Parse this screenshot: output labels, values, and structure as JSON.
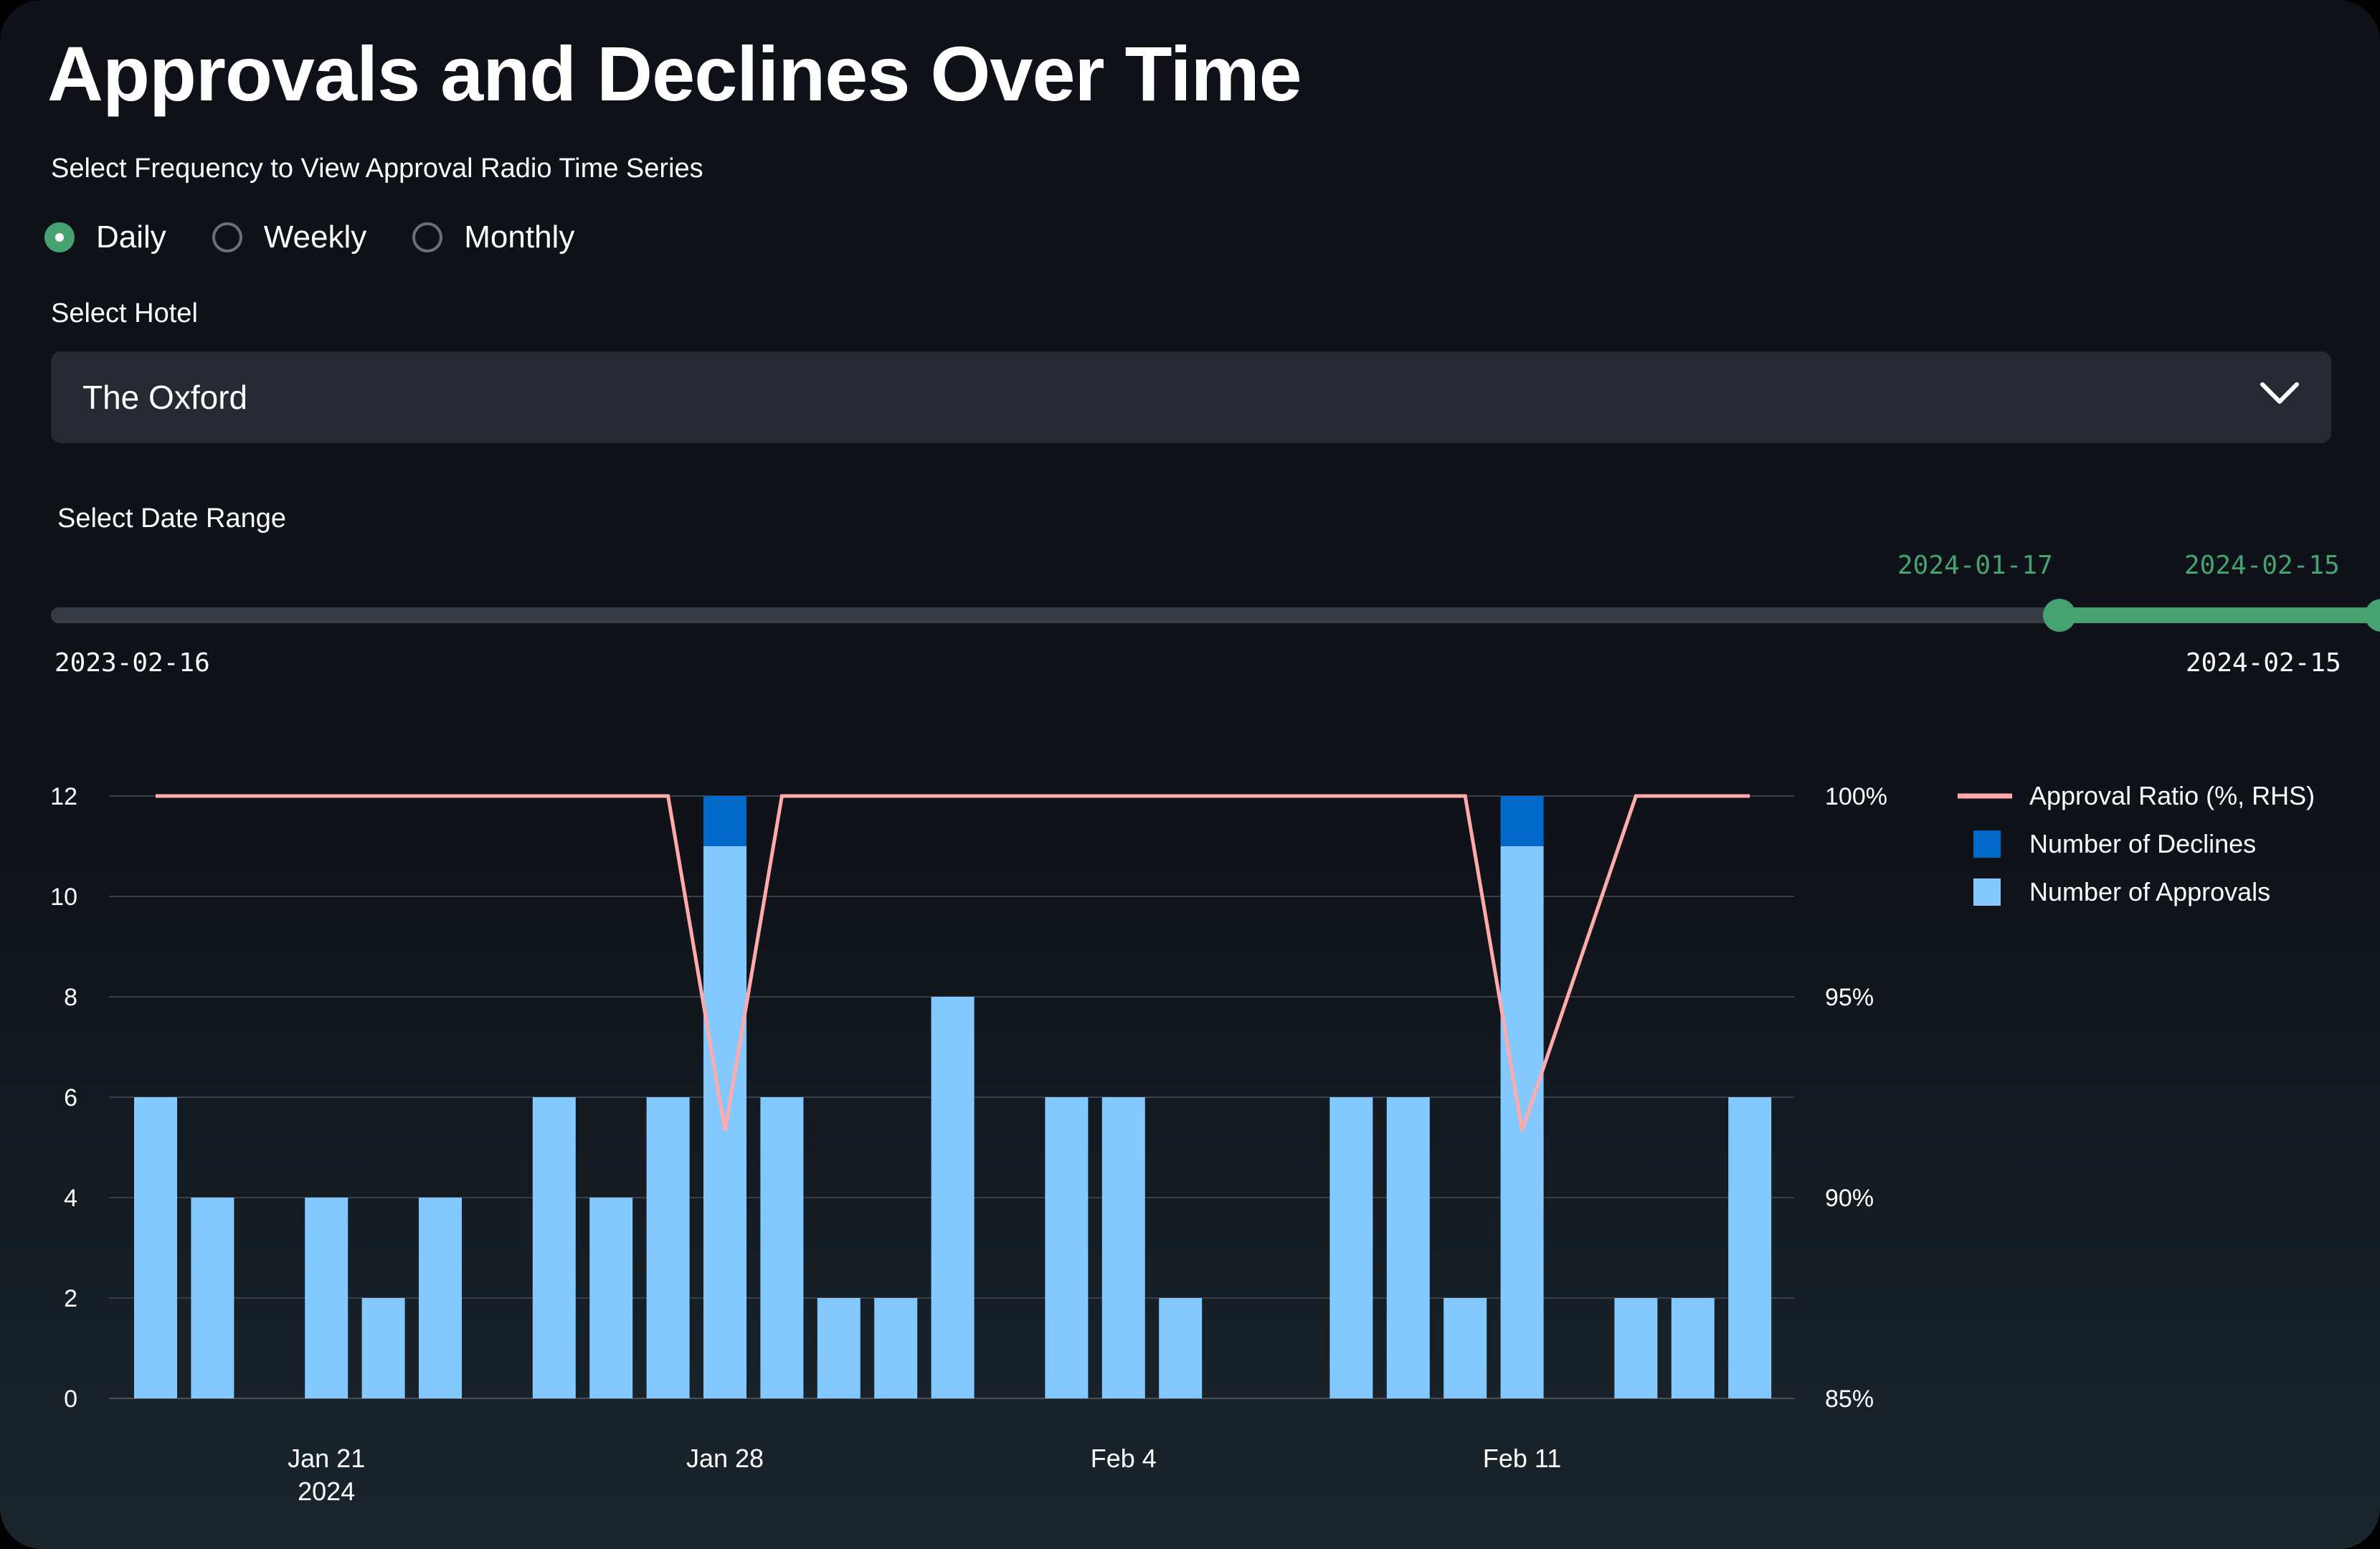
{
  "page": {
    "title": "Approvals and Declines Over Time",
    "frequency_label": "Select Frequency to View Approval Radio Time Series",
    "frequency_options": [
      "Daily",
      "Weekly",
      "Monthly"
    ],
    "frequency_selected": "Daily",
    "hotel_label": "Select Hotel",
    "hotel_value": "The Oxford",
    "date_range_label": "Select Date Range",
    "slider": {
      "min": "2023-02-16",
      "max": "2024-02-15",
      "start": "2024-01-17",
      "end": "2024-02-15",
      "accent_color": "#46a271"
    },
    "icons": {
      "dropdown": "chevron-down-icon"
    }
  },
  "chart_data": {
    "type": "bar",
    "stacked": true,
    "x": [
      "2024-01-18",
      "2024-01-19",
      "2024-01-20",
      "2024-01-21",
      "2024-01-22",
      "2024-01-23",
      "2024-01-24",
      "2024-01-25",
      "2024-01-26",
      "2024-01-27",
      "2024-01-28",
      "2024-01-29",
      "2024-01-30",
      "2024-01-31",
      "2024-02-01",
      "2024-02-02",
      "2024-02-03",
      "2024-02-04",
      "2024-02-05",
      "2024-02-06",
      "2024-02-07",
      "2024-02-08",
      "2024-02-09",
      "2024-02-10",
      "2024-02-11",
      "2024-02-12",
      "2024-02-13",
      "2024-02-14",
      "2024-02-15"
    ],
    "series": [
      {
        "name": "Number of Approvals",
        "color": "#83c9ff",
        "values": [
          6,
          4,
          0,
          4,
          2,
          4,
          0,
          6,
          4,
          6,
          11,
          6,
          2,
          2,
          8,
          0,
          6,
          6,
          2,
          0,
          0,
          6,
          6,
          2,
          11,
          0,
          2,
          2,
          6
        ]
      },
      {
        "name": "Number of Declines",
        "color": "#0068c9",
        "values": [
          0,
          0,
          0,
          0,
          0,
          0,
          0,
          0,
          0,
          0,
          1,
          0,
          0,
          0,
          0,
          0,
          0,
          0,
          0,
          0,
          0,
          0,
          0,
          0,
          1,
          0,
          0,
          0,
          0
        ]
      }
    ],
    "line": {
      "name": "Approval Ratio (%, RHS)",
      "color": "#ffabab",
      "axis": "right",
      "x": [
        "2024-01-18",
        "2024-01-19",
        "2024-01-21",
        "2024-01-22",
        "2024-01-23",
        "2024-01-25",
        "2024-01-26",
        "2024-01-27",
        "2024-01-28",
        "2024-01-29",
        "2024-01-30",
        "2024-01-31",
        "2024-02-01",
        "2024-02-03",
        "2024-02-04",
        "2024-02-05",
        "2024-02-08",
        "2024-02-09",
        "2024-02-10",
        "2024-02-11",
        "2024-02-13",
        "2024-02-14",
        "2024-02-15"
      ],
      "values": [
        100,
        100,
        100,
        100,
        100,
        100,
        100,
        100,
        91.67,
        100,
        100,
        100,
        100,
        100,
        100,
        100,
        100,
        100,
        100,
        91.67,
        100,
        100,
        100
      ]
    },
    "y_left": {
      "min": 0,
      "max": 12,
      "ticks": [
        0,
        2,
        4,
        6,
        8,
        10,
        12
      ]
    },
    "y_right": {
      "min": 85,
      "max": 100,
      "ticks": [
        85,
        90,
        95,
        100
      ],
      "tick_labels": [
        "85%",
        "90%",
        "95%",
        "100%"
      ]
    },
    "x_ticks": [
      {
        "date": "2024-01-21",
        "label": "Jan 21",
        "sublabel": "2024"
      },
      {
        "date": "2024-01-28",
        "label": "Jan 28"
      },
      {
        "date": "2024-02-04",
        "label": "Feb 4"
      },
      {
        "date": "2024-02-11",
        "label": "Feb 11"
      }
    ],
    "grid": true,
    "legend": [
      "Approval Ratio (%, RHS)",
      "Number of Declines",
      "Number of Approvals"
    ],
    "legend_position": "right"
  }
}
